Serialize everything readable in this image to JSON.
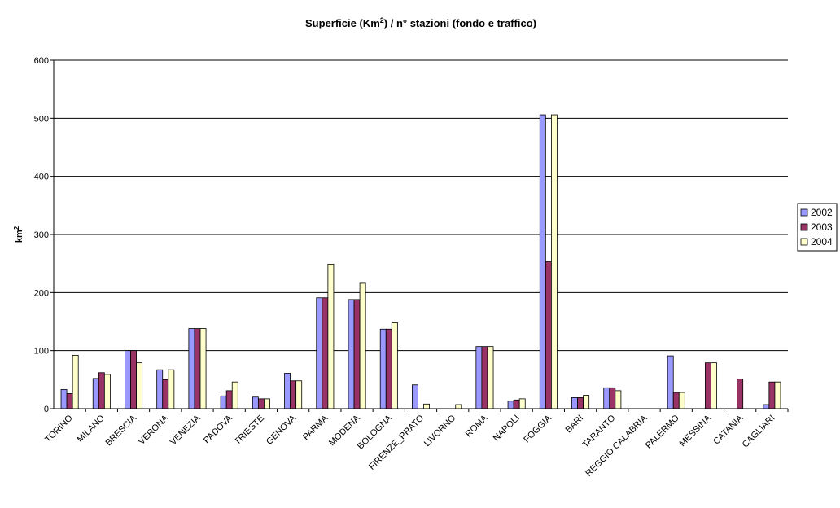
{
  "chart_data": {
    "type": "bar",
    "title_prefix": "Superficie (Km",
    "title_sup": "2",
    "title_suffix": ") / n° stazioni (fondo e traffico)",
    "ylabel": "km",
    "ylabel_sup": "2",
    "xlabel": "",
    "ylim": [
      0,
      600
    ],
    "yticks": [
      0,
      100,
      200,
      300,
      400,
      500,
      600
    ],
    "grid": true,
    "legend_position": "right",
    "categories": [
      "TORINO",
      "MILANO",
      "BRESCIA",
      "VERONA",
      "VENEZIA",
      "PADOVA",
      "TRIESTE",
      "GENOVA",
      "PARMA",
      "MODENA",
      "BOLOGNA",
      "FIRENZE_PRATO",
      "LIVORNO",
      "ROMA",
      "NAPOLI",
      "FOGGIA",
      "BARI",
      "TARANTO",
      "REGGIO CALABRIA",
      "PALERMO",
      "MESSINA",
      "CATANIA",
      "CAGLIARI"
    ],
    "series": [
      {
        "name": "2002",
        "color": "#9999ff",
        "values": [
          33,
          52,
          100,
          67,
          138,
          22,
          20,
          61,
          191,
          188,
          137,
          41,
          null,
          107,
          13,
          506,
          19,
          36,
          null,
          91,
          null,
          null,
          7
        ]
      },
      {
        "name": "2003",
        "color": "#993366",
        "values": [
          26,
          62,
          100,
          50,
          138,
          31,
          17,
          48,
          191,
          188,
          137,
          null,
          null,
          107,
          15,
          253,
          19,
          36,
          null,
          28,
          79,
          51,
          46
        ]
      },
      {
        "name": "2004",
        "color": "#ffffcc",
        "values": [
          92,
          59,
          79,
          67,
          138,
          46,
          17,
          48,
          249,
          216,
          148,
          8,
          7,
          107,
          17,
          506,
          23,
          31,
          null,
          28,
          79,
          null,
          46
        ]
      }
    ]
  }
}
